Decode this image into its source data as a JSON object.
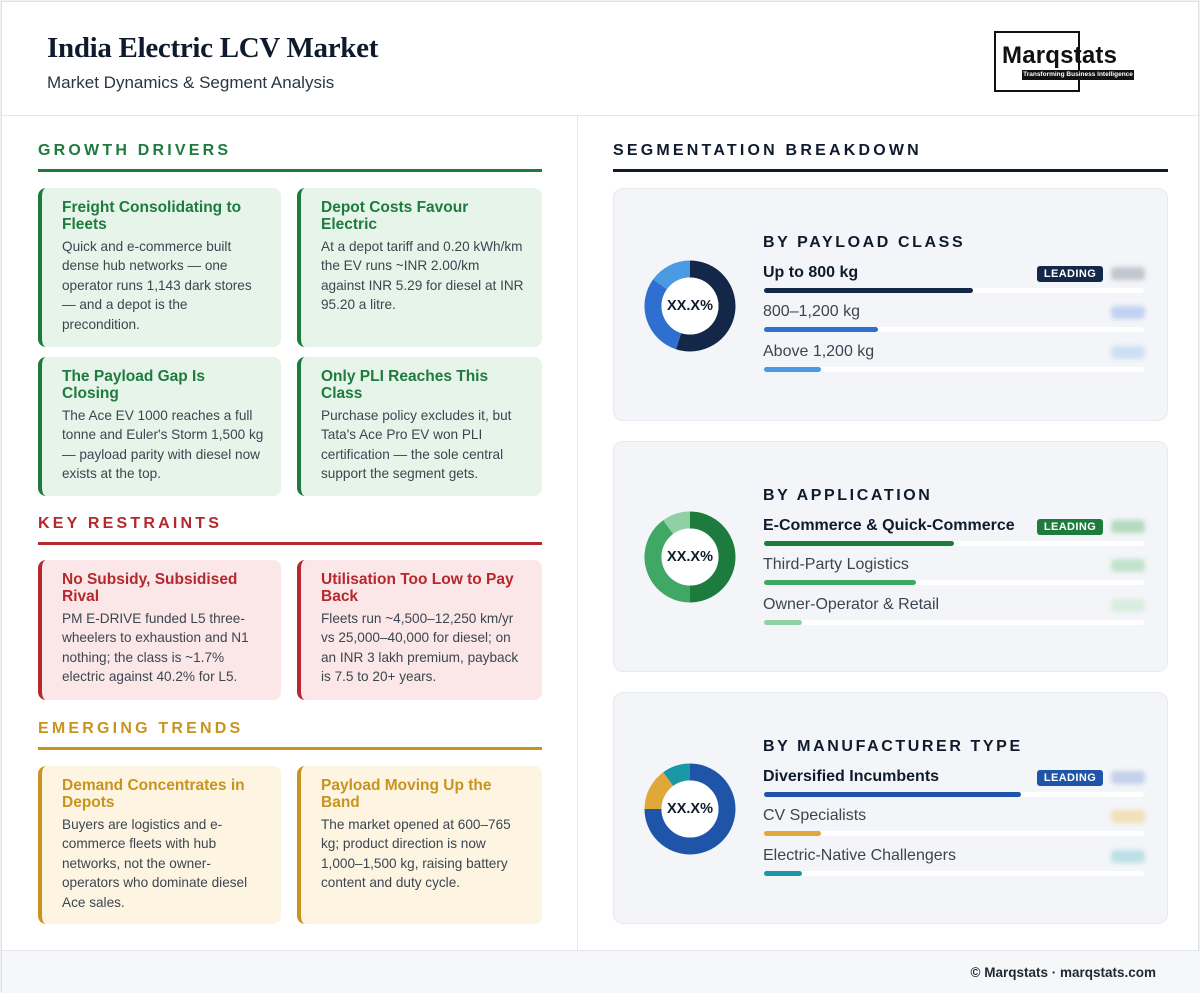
{
  "header": {
    "title": "India Electric LCV Market",
    "subtitle": "Market Dynamics & Segment Analysis",
    "logo_text": "Marqstats",
    "logo_tagline": "Transforming Business Intelligence"
  },
  "drivers": {
    "heading": "GROWTH DRIVERS",
    "color": "#1e7b3e",
    "cards": [
      {
        "title": "Freight Consolidating to Fleets",
        "body": "Quick and e-commerce built dense hub networks — one operator runs 1,143 dark stores — and a depot is the precondition."
      },
      {
        "title": "Depot Costs Favour Electric",
        "body": "At a depot tariff and 0.20 kWh/km the EV runs ~INR 2.00/km against INR 5.29 for diesel at INR 95.20 a litre."
      },
      {
        "title": "The Payload Gap Is Closing",
        "body": "The Ace EV 1000 reaches a full tonne and Euler's Storm 1,500 kg — payload parity with diesel now exists at the top."
      },
      {
        "title": "Only PLI Reaches This Class",
        "body": "Purchase policy excludes it, but Tata's Ace Pro EV won PLI certification — the sole central support the segment gets."
      }
    ]
  },
  "restraints": {
    "heading": "KEY RESTRAINTS",
    "color": "#b5282e",
    "cards": [
      {
        "title": "No Subsidy, Subsidised Rival",
        "body": "PM E-DRIVE funded L5 three-wheelers to exhaustion and N1 nothing; the class is ~1.7% electric against 40.2% for L5."
      },
      {
        "title": "Utilisation Too Low to Pay Back",
        "body": "Fleets run ~4,500–12,250 km/yr vs 25,000–40,000 for diesel; on an INR 3 lakh premium, payback is 7.5 to 20+ years."
      }
    ]
  },
  "trends": {
    "heading": "EMERGING TRENDS",
    "color": "#c9931f",
    "cards": [
      {
        "title": "Demand Concentrates in Depots",
        "body": "Buyers are logistics and e-commerce fleets with hub networks, not the owner-operators who dominate diesel Ace sales."
      },
      {
        "title": "Payload Moving Up the Band",
        "body": "The market opened at 600–765 kg; product direction is now 1,000–1,500 kg, raising battery content and duty cycle."
      }
    ]
  },
  "segmentation": {
    "heading": "SEGMENTATION BREAKDOWN",
    "leading_label": "LEADING",
    "panels": [
      {
        "title": "BY PAYLOAD CLASS",
        "donut_label": "XX.X%",
        "rows": [
          {
            "label": "Up to 800 kg",
            "share": 0.55,
            "color": "#132849"
          },
          {
            "label": "800–1,200 kg",
            "share": 0.3,
            "color": "#2f6fcf"
          },
          {
            "label": "Above 1,200 kg",
            "share": 0.15,
            "color": "#4a9ae3"
          }
        ]
      },
      {
        "title": "BY APPLICATION",
        "donut_label": "XX.X%",
        "rows": [
          {
            "label": "E-Commerce & Quick-Commerce",
            "share": 0.5,
            "color": "#1e7b3e"
          },
          {
            "label": "Third-Party Logistics",
            "share": 0.4,
            "color": "#3fa864"
          },
          {
            "label": "Owner-Operator & Retail",
            "share": 0.1,
            "color": "#8fd0a4"
          }
        ]
      },
      {
        "title": "BY MANUFACTURER TYPE",
        "donut_label": "XX.X%",
        "rows": [
          {
            "label": "Diversified Incumbents",
            "share": 0.75,
            "color": "#1f55a8"
          },
          {
            "label": "CV Specialists",
            "share": 0.15,
            "color": "#e0a73a"
          },
          {
            "label": "Electric-Native Challengers",
            "share": 0.1,
            "color": "#1a98a6"
          }
        ]
      }
    ]
  },
  "footer": {
    "text": "© Marqstats · marqstats.com"
  }
}
